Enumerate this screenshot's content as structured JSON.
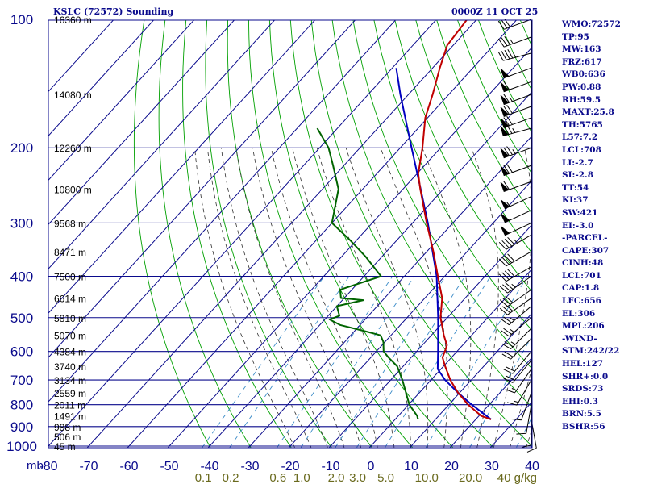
{
  "header": {
    "station": "KSLC (72572) Sounding",
    "datetime": "0000Z 11 OCT 25"
  },
  "indices": [
    "WMO:72572",
    "TP:95",
    "MW:163",
    "FRZ:617",
    "WB0:636",
    "PW:0.88",
    "RH:59.5",
    "MAXT:25.8",
    "TH:5765",
    "L57:7.2",
    "LCL:708",
    "LI:-2.7",
    "SI:-2.8",
    "TT:54",
    "KI:37",
    "SW:421",
    "EI:-3.0",
    "-PARCEL-",
    "CAPE:307",
    "CINH:48",
    "LCL:701",
    "CAP:1.8",
    "LFC:656",
    "EL:306",
    "MPL:206",
    "-WIND-",
    "STM:242/22",
    "HEL:127",
    "SHR+:0.0",
    "SRDS:73",
    "EHI:0.3",
    "BRN:5.5",
    "BSHR:56"
  ],
  "colors": {
    "isotherm": "#0a0a8c",
    "dry_adiabat": "#00a000",
    "moist_adiabat": "#303030",
    "mixing_ratio": "#3c8cc8",
    "temperature": "#c00000",
    "dewpoint": "#006400",
    "parcel": "#0000c0",
    "axis_label": "#0a0a8c",
    "mixing_label": "#6a6a1e"
  },
  "chart_data": {
    "type": "skew-t",
    "pressure_axis": {
      "unit": "mb",
      "ticks": [
        100,
        200,
        300,
        400,
        500,
        600,
        700,
        800,
        900,
        1000
      ],
      "range": [
        100,
        1000
      ],
      "scale": "log"
    },
    "temperature_axis": {
      "ticks": [
        -80,
        -70,
        -60,
        -50,
        -40,
        -30,
        -20,
        -10,
        0,
        10,
        20,
        30,
        40
      ],
      "labels": [
        "-80",
        "-70",
        "-60",
        "-50",
        "-40",
        "-30",
        "-20",
        "-10",
        "0",
        "10",
        "20",
        "30",
        "40"
      ]
    },
    "heights": [
      {
        "p": 100,
        "label": "16360 m"
      },
      {
        "p": 150,
        "label": "14080 m"
      },
      {
        "p": 200,
        "label": "12260 m"
      },
      {
        "p": 250,
        "label": "10800 m"
      },
      {
        "p": 300,
        "label": "9568 m"
      },
      {
        "p": 350,
        "label": "8471 m"
      },
      {
        "p": 400,
        "label": "7500 m"
      },
      {
        "p": 450,
        "label": "6614 m"
      },
      {
        "p": 500,
        "label": "5810 m"
      },
      {
        "p": 550,
        "label": "5070 m"
      },
      {
        "p": 600,
        "label": "4384 m"
      },
      {
        "p": 650,
        "label": "3740 m"
      },
      {
        "p": 700,
        "label": "3134 m"
      },
      {
        "p": 750,
        "label": "2559 m"
      },
      {
        "p": 800,
        "label": "2011 m"
      },
      {
        "p": 850,
        "label": "1491 m"
      },
      {
        "p": 900,
        "label": "988 m"
      },
      {
        "p": 950,
        "label": "506 m"
      },
      {
        "p": 1000,
        "label": "45 m"
      }
    ],
    "mixing_ratio_labels": [
      "0.1",
      "0.2",
      "0.6",
      "1.0",
      "2.0",
      "3.0",
      "5.0",
      "10.0",
      "20.0",
      "40 g/kg"
    ],
    "mixing_ratio_values": [
      0.1,
      0.2,
      0.6,
      1.0,
      2.0,
      3.0,
      5.0,
      10.0,
      20.0,
      40.0
    ],
    "temperature": [
      {
        "p": 866,
        "t": 23.8
      },
      {
        "p": 850,
        "t": 20.6
      },
      {
        "p": 800,
        "t": 14.8
      },
      {
        "p": 750,
        "t": 9.6
      },
      {
        "p": 700,
        "t": 4.8
      },
      {
        "p": 650,
        "t": 0.4
      },
      {
        "p": 620,
        "t": -2.2
      },
      {
        "p": 600,
        "t": -3.0
      },
      {
        "p": 580,
        "t": -3.9
      },
      {
        "p": 550,
        "t": -6.9
      },
      {
        "p": 500,
        "t": -11.7
      },
      {
        "p": 450,
        "t": -15.7
      },
      {
        "p": 400,
        "t": -21.7
      },
      {
        "p": 350,
        "t": -28.4
      },
      {
        "p": 300,
        "t": -36.5
      },
      {
        "p": 250,
        "t": -45.7
      },
      {
        "p": 230,
        "t": -49.7
      },
      {
        "p": 200,
        "t": -54.5
      },
      {
        "p": 170,
        "t": -60.6
      },
      {
        "p": 150,
        "t": -64.0
      },
      {
        "p": 130,
        "t": -68.2
      },
      {
        "p": 115,
        "t": -71.5
      },
      {
        "p": 100,
        "t": -72.4
      }
    ],
    "dewpoint": [
      {
        "p": 866,
        "t": 5.8
      },
      {
        "p": 860,
        "t": 5.3
      },
      {
        "p": 850,
        "t": 4.7
      },
      {
        "p": 800,
        "t": 0.2
      },
      {
        "p": 700,
        "t": -7.1
      },
      {
        "p": 650,
        "t": -11.5
      },
      {
        "p": 620,
        "t": -15.6
      },
      {
        "p": 600,
        "t": -18.2
      },
      {
        "p": 570,
        "t": -20.4
      },
      {
        "p": 550,
        "t": -22.6
      },
      {
        "p": 540,
        "t": -26.6
      },
      {
        "p": 520,
        "t": -35.0
      },
      {
        "p": 505,
        "t": -38.8
      },
      {
        "p": 495,
        "t": -37.2
      },
      {
        "p": 470,
        "t": -40.0
      },
      {
        "p": 455,
        "t": -34.8
      },
      {
        "p": 450,
        "t": -40.8
      },
      {
        "p": 430,
        "t": -42.9
      },
      {
        "p": 400,
        "t": -35.8
      },
      {
        "p": 360,
        "t": -44.0
      },
      {
        "p": 330,
        "t": -51.4
      },
      {
        "p": 300,
        "t": -60.0
      },
      {
        "p": 250,
        "t": -66.0
      },
      {
        "p": 220,
        "t": -72.7
      },
      {
        "p": 200,
        "t": -77.8
      },
      {
        "p": 180,
        "t": -85.0
      }
    ],
    "parcel": [
      {
        "p": 866,
        "t": 23.8
      },
      {
        "p": 800,
        "t": 15.7
      },
      {
        "p": 750,
        "t": 9.6
      },
      {
        "p": 700,
        "t": 3.5
      },
      {
        "p": 660,
        "t": -0.8
      },
      {
        "p": 600,
        "t": -4.7
      },
      {
        "p": 500,
        "t": -12.3
      },
      {
        "p": 400,
        "t": -22.0
      },
      {
        "p": 300,
        "t": -36.2
      },
      {
        "p": 250,
        "t": -45.6
      },
      {
        "p": 200,
        "t": -57.2
      },
      {
        "p": 150,
        "t": -72.0
      },
      {
        "p": 130,
        "t": -79.0
      }
    ],
    "wind_barbs": [
      {
        "p": 100,
        "dir": 250,
        "spd": 30
      },
      {
        "p": 110,
        "dir": 250,
        "spd": 35
      },
      {
        "p": 120,
        "dir": 255,
        "spd": 45
      },
      {
        "p": 130,
        "dir": 250,
        "spd": 50
      },
      {
        "p": 140,
        "dir": 250,
        "spd": 60
      },
      {
        "p": 150,
        "dir": 250,
        "spd": 65
      },
      {
        "p": 160,
        "dir": 250,
        "spd": 70
      },
      {
        "p": 170,
        "dir": 250,
        "spd": 70
      },
      {
        "p": 180,
        "dir": 255,
        "spd": 75
      },
      {
        "p": 200,
        "dir": 250,
        "spd": 75
      },
      {
        "p": 220,
        "dir": 250,
        "spd": 70
      },
      {
        "p": 240,
        "dir": 250,
        "spd": 60
      },
      {
        "p": 260,
        "dir": 245,
        "spd": 55
      },
      {
        "p": 280,
        "dir": 245,
        "spd": 50
      },
      {
        "p": 300,
        "dir": 245,
        "spd": 50
      },
      {
        "p": 320,
        "dir": 240,
        "spd": 45
      },
      {
        "p": 350,
        "dir": 240,
        "spd": 40
      },
      {
        "p": 380,
        "dir": 240,
        "spd": 40
      },
      {
        "p": 400,
        "dir": 235,
        "spd": 35
      },
      {
        "p": 430,
        "dir": 235,
        "spd": 30
      },
      {
        "p": 450,
        "dir": 235,
        "spd": 30
      },
      {
        "p": 470,
        "dir": 230,
        "spd": 25
      },
      {
        "p": 500,
        "dir": 230,
        "spd": 25
      },
      {
        "p": 530,
        "dir": 225,
        "spd": 25
      },
      {
        "p": 560,
        "dir": 225,
        "spd": 20
      },
      {
        "p": 600,
        "dir": 220,
        "spd": 20
      },
      {
        "p": 630,
        "dir": 220,
        "spd": 20
      },
      {
        "p": 660,
        "dir": 215,
        "spd": 15
      },
      {
        "p": 700,
        "dir": 210,
        "spd": 15
      },
      {
        "p": 750,
        "dir": 200,
        "spd": 10
      },
      {
        "p": 800,
        "dir": 190,
        "spd": 10
      },
      {
        "p": 850,
        "dir": 180,
        "spd": 10
      },
      {
        "p": 866,
        "dir": 170,
        "spd": 10
      }
    ]
  }
}
